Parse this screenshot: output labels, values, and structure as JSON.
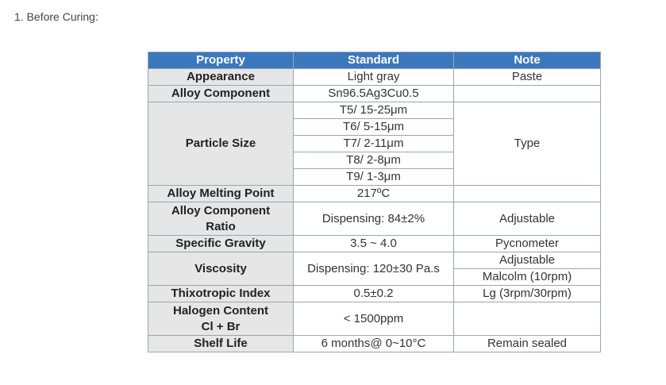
{
  "heading": "1. Before Curing:",
  "table": {
    "header": [
      "Property",
      "Standard",
      "Note"
    ],
    "rows": [
      {
        "property": "Appearance",
        "standard": "Light gray",
        "note": "Paste"
      },
      {
        "property": "Alloy Component",
        "standard": "Sn96.5Ag3Cu0.5"
      },
      {
        "property": "Particle Size",
        "standard": [
          "T5/ 15-25μm",
          "T6/ 5-15μm",
          "T7/ 2-11μm",
          "T8/ 2-8μm",
          "T9/ 1-3μm"
        ],
        "note": "Type"
      },
      {
        "property": "Alloy Melting Point",
        "standard": "217ºC"
      },
      {
        "property": "Alloy Component Ratio",
        "standard": "Dispensing: 84±2%",
        "note": "Adjustable"
      },
      {
        "property": "Specific Gravity",
        "standard": "3.5 ~ 4.0",
        "note": "Pycnometer"
      },
      {
        "property": "Viscosity",
        "standard": "Dispensing: 120±30 Pa.s",
        "note": [
          "Adjustable",
          "Malcolm (10rpm)"
        ]
      },
      {
        "property": "Thixotropic Index",
        "standard": "0.5±0.2",
        "note": "Lg (3rpm/30rpm)"
      },
      {
        "property": "Halogen Content Cl + Br",
        "standard": "< 1500ppm"
      },
      {
        "property": "Shelf Life",
        "standard": "6 months@ 0~10°C",
        "note": "Remain sealed"
      }
    ]
  }
}
